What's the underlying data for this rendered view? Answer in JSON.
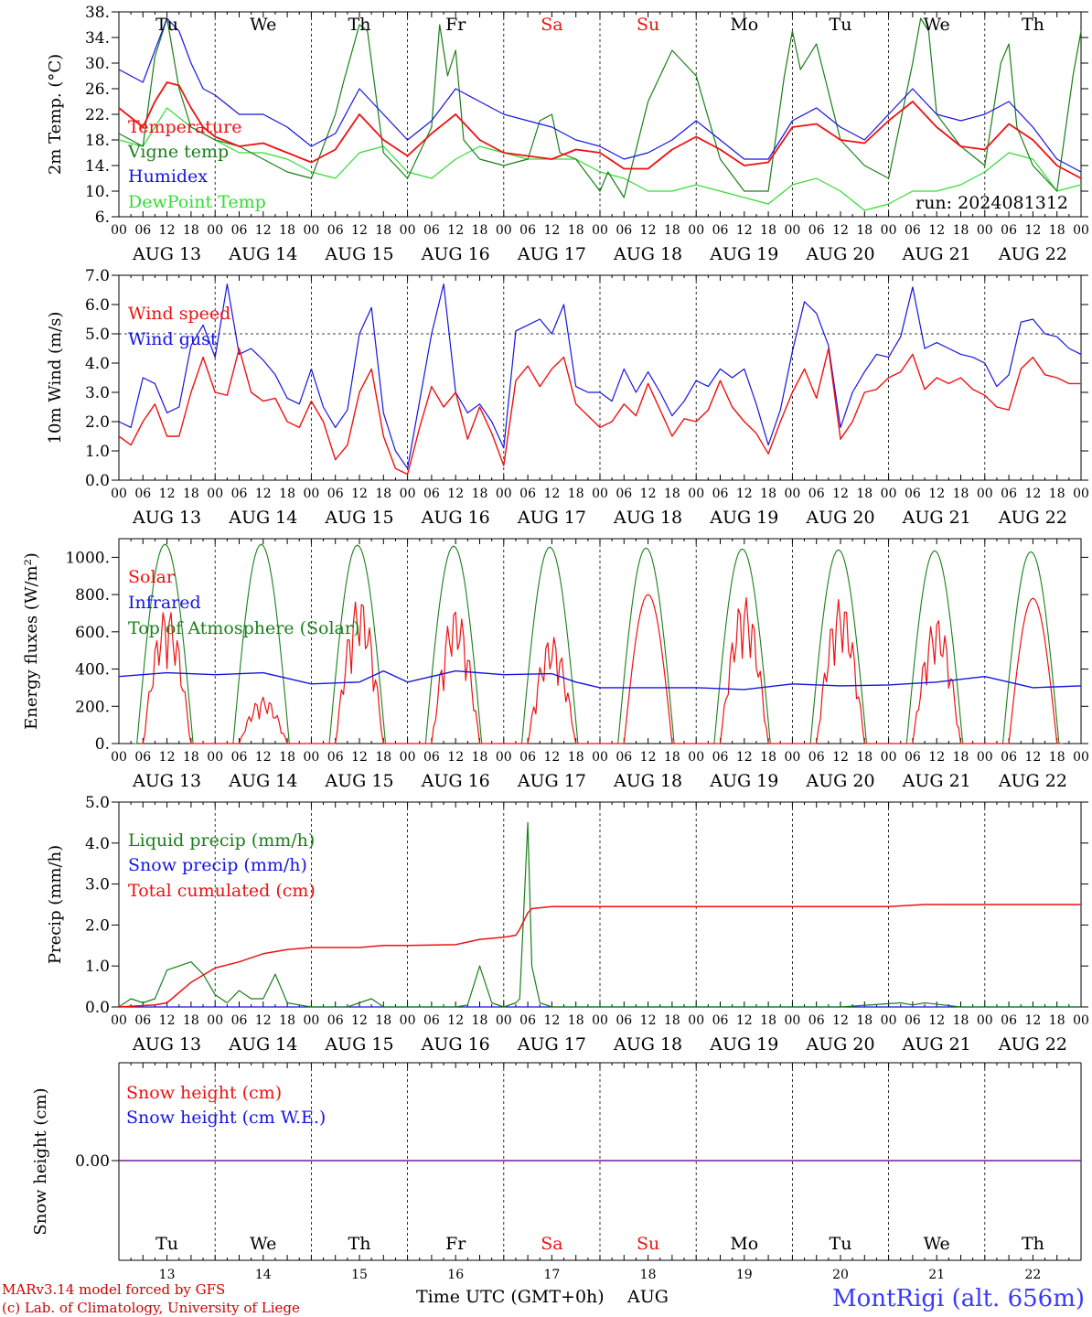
{
  "colors": {
    "red": "#ee1111",
    "green": "#1a7f1a",
    "blue": "#1515e0",
    "lightgreen": "#33dd33",
    "purple": "#7a1a9a",
    "weekend": "#ee1111"
  },
  "weekdays": [
    "Tu",
    "We",
    "Th",
    "Fr",
    "Sa",
    "Su",
    "Mo",
    "Tu",
    "We",
    "Th"
  ],
  "weekend_index": [
    4,
    5
  ],
  "date_labels": [
    "AUG 13",
    "AUG 14",
    "AUG 15",
    "AUG 16",
    "AUG 17",
    "AUG 18",
    "AUG 19",
    "AUG 20",
    "AUG 21",
    "AUG 22"
  ],
  "hour_labels": [
    "00",
    "06",
    "12",
    "18"
  ],
  "hour_last": "00",
  "day_numbers": [
    "13",
    "14",
    "15",
    "16",
    "17",
    "18",
    "19",
    "20",
    "21",
    "22"
  ],
  "footer": {
    "model": "MARv3.14 model forced by GFS",
    "credit": "(c) Lab. of Climatology, University of Liege",
    "xlabel": "Time UTC (GMT+0h)",
    "month": "AUG",
    "station": "MontRigi (alt. 656m)"
  },
  "panels": {
    "temp": {
      "ylabel": "2m Temp. (°C)",
      "yticks": [
        "38.",
        "34.",
        "30.",
        "26.",
        "22.",
        "18.",
        "14.",
        "10.",
        "6."
      ],
      "run": "run: 2024081312",
      "legend": [
        "Temperature",
        "Vigne temp",
        "Humidex",
        "DewPoint Temp"
      ]
    },
    "wind": {
      "ylabel": "10m Wind (m/s)",
      "yticks": [
        "7.0",
        "6.0",
        "5.0",
        "4.0",
        "3.0",
        "2.0",
        "1.0",
        "0.0"
      ],
      "legend": [
        "Wind speed",
        "Wind gust"
      ]
    },
    "flux": {
      "ylabel": "Energy fluxes (W/m²)",
      "yticks": [
        "1000.",
        "800.",
        "600.",
        "400.",
        "200.",
        "0."
      ],
      "legend": [
        "Solar",
        "Infrared",
        "Top of Atmosphere (Solar)"
      ]
    },
    "precip": {
      "ylabel": "Precip (mm/h)",
      "yticks": [
        "5.0",
        "4.0",
        "3.0",
        "2.0",
        "1.0",
        "0.0"
      ],
      "legend": [
        "Liquid precip (mm/h)",
        "Snow precip (mm/h)",
        "Total cumulated (cm)"
      ]
    },
    "snow": {
      "ylabel": "Snow height (cm)",
      "yticks": [
        "0.00"
      ],
      "legend": [
        "Snow height (cm)",
        "Snow height (cm W.E.)"
      ]
    }
  },
  "chart_data": [
    {
      "type": "line",
      "title": "",
      "ylabel": "2m Temp. (°C)",
      "x_unit": "hours since 00 UTC AUG 13",
      "xlim": [
        0,
        240
      ],
      "ylim": [
        6,
        38
      ],
      "series": [
        {
          "name": "Temperature",
          "x": [
            0,
            6,
            9,
            12,
            15,
            18,
            21,
            24,
            30,
            36,
            42,
            48,
            54,
            60,
            66,
            72,
            78,
            84,
            90,
            96,
            102,
            108,
            114,
            120,
            126,
            132,
            138,
            144,
            150,
            156,
            162,
            168,
            174,
            180,
            186,
            192,
            198,
            204,
            210,
            216,
            222,
            228,
            234,
            240
          ],
          "y": [
            23,
            20,
            24,
            27,
            26.5,
            23,
            20,
            18.5,
            17,
            17.5,
            16,
            14.5,
            16.5,
            22,
            18,
            15.5,
            19,
            22,
            18,
            16,
            15.5,
            15,
            16.5,
            16,
            13.5,
            13.5,
            16.5,
            18.5,
            16.5,
            14,
            14.5,
            20,
            20.5,
            18,
            17.5,
            21,
            24,
            20,
            17,
            16.5,
            20.5,
            18,
            14,
            12
          ]
        },
        {
          "name": "Vigne temp",
          "x": [
            0,
            6,
            9,
            12,
            15,
            18,
            21,
            24,
            30,
            36,
            42,
            48,
            54,
            56,
            60,
            62,
            66,
            72,
            78,
            80,
            82,
            84,
            86,
            90,
            96,
            102,
            105,
            108,
            110,
            114,
            120,
            122,
            126,
            132,
            138,
            144,
            150,
            156,
            162,
            166,
            168,
            170,
            174,
            180,
            186,
            192,
            198,
            200,
            202,
            204,
            210,
            216,
            220,
            222,
            224,
            228,
            234,
            238,
            240
          ],
          "y": [
            19,
            17,
            31,
            37,
            26,
            20,
            19,
            18,
            17,
            15,
            13,
            12,
            22,
            27,
            36,
            35,
            16,
            12,
            20,
            36,
            28,
            32,
            18,
            15,
            14,
            15,
            21,
            22,
            16,
            15,
            10,
            13,
            9,
            24,
            32,
            28,
            15,
            10,
            10,
            28,
            35,
            29,
            33,
            18,
            14,
            12,
            30,
            37,
            35,
            22,
            17,
            14,
            30,
            33,
            20,
            14,
            10,
            28,
            35
          ]
        },
        {
          "name": "Humidex",
          "x": [
            0,
            6,
            9,
            12,
            15,
            18,
            21,
            24,
            30,
            36,
            42,
            48,
            54,
            60,
            66,
            72,
            78,
            84,
            90,
            96,
            102,
            108,
            114,
            120,
            126,
            132,
            138,
            144,
            150,
            156,
            162,
            168,
            174,
            180,
            186,
            192,
            198,
            204,
            210,
            216,
            222,
            228,
            234,
            240
          ],
          "y": [
            29,
            27,
            32,
            37,
            35,
            30,
            26,
            25,
            22,
            22,
            20,
            17,
            19,
            26,
            22,
            18,
            21,
            26,
            24,
            22,
            21,
            20,
            18,
            17,
            15,
            16,
            18,
            21,
            18,
            15,
            15,
            21,
            23,
            20,
            18,
            22,
            26,
            22,
            21,
            22,
            24,
            20,
            15,
            13
          ]
        },
        {
          "name": "DewPoint Temp",
          "x": [
            0,
            6,
            12,
            18,
            24,
            30,
            36,
            42,
            48,
            54,
            60,
            66,
            72,
            78,
            84,
            90,
            96,
            102,
            108,
            114,
            120,
            126,
            132,
            138,
            144,
            150,
            156,
            162,
            168,
            174,
            180,
            186,
            192,
            198,
            204,
            210,
            216,
            222,
            228,
            234,
            240
          ],
          "y": [
            18,
            17,
            23,
            20,
            18,
            16,
            16,
            15,
            13,
            12,
            16,
            17,
            13,
            12,
            15,
            17,
            16,
            15,
            15,
            15,
            13,
            12,
            10,
            10,
            11,
            10,
            9,
            8,
            11,
            12,
            10,
            7,
            8,
            10,
            10,
            11,
            13,
            16,
            15,
            10,
            11
          ]
        }
      ]
    },
    {
      "type": "line",
      "title": "",
      "ylabel": "10m Wind (m/s)",
      "xlim": [
        0,
        240
      ],
      "ylim": [
        0,
        7
      ],
      "series": [
        {
          "name": "Wind speed",
          "x": [
            0,
            3,
            6,
            9,
            12,
            15,
            18,
            21,
            24,
            27,
            30,
            33,
            36,
            39,
            42,
            45,
            48,
            51,
            54,
            57,
            60,
            63,
            66,
            69,
            72,
            75,
            78,
            81,
            84,
            87,
            90,
            93,
            96,
            99,
            102,
            105,
            108,
            111,
            114,
            117,
            120,
            123,
            126,
            129,
            132,
            135,
            138,
            141,
            144,
            147,
            150,
            153,
            156,
            159,
            162,
            165,
            168,
            171,
            174,
            177,
            180,
            183,
            186,
            189,
            192,
            195,
            198,
            201,
            204,
            207,
            210,
            213,
            216,
            219,
            222,
            225,
            228,
            231,
            234,
            237,
            240
          ],
          "y": [
            1.5,
            1.2,
            2.0,
            2.6,
            1.5,
            1.5,
            3.0,
            4.2,
            3.0,
            2.9,
            4.5,
            3.0,
            2.7,
            2.8,
            2.0,
            1.8,
            2.7,
            2.0,
            0.7,
            1.2,
            3.0,
            3.8,
            1.5,
            0.4,
            0.2,
            1.8,
            3.2,
            2.5,
            3.0,
            1.4,
            2.5,
            1.6,
            0.5,
            3.4,
            3.9,
            3.2,
            3.8,
            4.2,
            2.6,
            2.2,
            1.8,
            2.0,
            2.6,
            2.2,
            3.3,
            2.4,
            1.5,
            2.1,
            2.0,
            2.4,
            3.4,
            2.5,
            2.0,
            1.6,
            0.9,
            2.0,
            3.0,
            3.8,
            2.8,
            4.5,
            1.4,
            2.0,
            3.0,
            3.1,
            3.5,
            3.7,
            4.3,
            3.1,
            3.5,
            3.3,
            3.5,
            3.1,
            2.9,
            2.5,
            2.4,
            3.8,
            4.2,
            3.6,
            3.5,
            3.3,
            3.3
          ]
        },
        {
          "name": "Wind gust",
          "x": [
            0,
            3,
            6,
            9,
            12,
            15,
            18,
            21,
            24,
            27,
            30,
            33,
            36,
            39,
            42,
            45,
            48,
            51,
            54,
            57,
            60,
            63,
            66,
            69,
            72,
            75,
            78,
            81,
            84,
            87,
            90,
            93,
            96,
            99,
            102,
            105,
            108,
            111,
            114,
            117,
            120,
            123,
            126,
            129,
            132,
            135,
            138,
            141,
            144,
            147,
            150,
            153,
            156,
            159,
            162,
            165,
            168,
            171,
            174,
            177,
            180,
            183,
            186,
            189,
            192,
            195,
            198,
            201,
            204,
            207,
            210,
            213,
            216,
            219,
            222,
            225,
            228,
            231,
            234,
            237,
            240
          ],
          "y": [
            2.0,
            1.8,
            3.5,
            3.3,
            2.3,
            2.5,
            4.6,
            5.3,
            4.2,
            6.7,
            4.3,
            4.5,
            4.1,
            3.6,
            2.8,
            2.6,
            3.8,
            2.5,
            1.8,
            2.4,
            5.0,
            5.9,
            2.3,
            1.0,
            0.4,
            2.7,
            5.0,
            6.7,
            3.0,
            2.3,
            2.6,
            2.0,
            1.1,
            5.1,
            5.3,
            5.5,
            5.0,
            6.0,
            3.2,
            3.0,
            3.0,
            2.7,
            3.8,
            3.0,
            3.7,
            3.0,
            2.2,
            2.7,
            3.4,
            3.2,
            3.8,
            3.5,
            3.8,
            2.6,
            1.2,
            2.4,
            4.4,
            6.1,
            5.7,
            4.6,
            1.8,
            3.0,
            3.7,
            4.3,
            4.2,
            4.9,
            6.6,
            4.5,
            4.7,
            4.5,
            4.3,
            4.2,
            4.0,
            3.2,
            3.6,
            5.4,
            5.5,
            5.0,
            4.9,
            4.5,
            4.3
          ]
        }
      ]
    },
    {
      "type": "line",
      "title": "",
      "ylabel": "Energy fluxes (W/m²)",
      "xlim": [
        0,
        240
      ],
      "ylim": [
        0,
        1100
      ],
      "series": [
        {
          "name": "Solar",
          "peaks": [
            730,
            250,
            790,
            730,
            580,
            800,
            790,
            780,
            680,
            780
          ]
        },
        {
          "name": "Infrared",
          "x": [
            0,
            12,
            24,
            36,
            48,
            60,
            66,
            72,
            84,
            96,
            108,
            114,
            120,
            132,
            144,
            156,
            168,
            180,
            192,
            204,
            216,
            228,
            240
          ],
          "y": [
            360,
            380,
            370,
            380,
            320,
            330,
            390,
            330,
            390,
            370,
            375,
            330,
            300,
            300,
            300,
            290,
            320,
            310,
            315,
            330,
            360,
            300,
            310
          ]
        },
        {
          "name": "Top of Atmosphere (Solar)",
          "peaks": [
            1070,
            1070,
            1065,
            1060,
            1055,
            1050,
            1045,
            1040,
            1035,
            1030
          ]
        }
      ]
    },
    {
      "type": "line",
      "title": "",
      "ylabel": "Precip (mm/h)",
      "xlim": [
        0,
        240
      ],
      "ylim": [
        0,
        5
      ],
      "series": [
        {
          "name": "Liquid precip (mm/h)",
          "x": [
            0,
            3,
            6,
            9,
            12,
            15,
            18,
            21,
            24,
            27,
            30,
            33,
            36,
            39,
            42,
            45,
            48,
            57,
            60,
            63,
            66,
            84,
            87,
            90,
            93,
            96,
            99,
            100,
            102,
            103,
            105,
            108,
            120,
            180,
            195,
            198,
            201,
            210,
            240
          ],
          "y": [
            0,
            0.2,
            0.1,
            0.2,
            0.9,
            1.0,
            1.1,
            0.8,
            0.3,
            0.1,
            0.4,
            0.2,
            0.2,
            0.8,
            0.1,
            0.05,
            0,
            0,
            0.1,
            0.2,
            0,
            0,
            0.05,
            1.0,
            0.1,
            0,
            0.1,
            0.2,
            4.5,
            1.0,
            0.1,
            0,
            0,
            0,
            0.1,
            0.05,
            0.1,
            0,
            0
          ]
        },
        {
          "name": "Snow precip (mm/h)",
          "x": [
            0,
            240
          ],
          "y": [
            0,
            0
          ]
        },
        {
          "name": "Total cumulated (cm)",
          "x": [
            0,
            9,
            12,
            18,
            24,
            30,
            36,
            42,
            48,
            60,
            66,
            72,
            84,
            90,
            96,
            99,
            100,
            102,
            103,
            105,
            108,
            120,
            180,
            192,
            201,
            240
          ],
          "y": [
            0,
            0.05,
            0.1,
            0.6,
            0.95,
            1.1,
            1.3,
            1.4,
            1.45,
            1.45,
            1.5,
            1.5,
            1.52,
            1.65,
            1.7,
            1.75,
            1.9,
            2.3,
            2.4,
            2.42,
            2.45,
            2.45,
            2.45,
            2.45,
            2.5,
            2.5
          ]
        }
      ]
    },
    {
      "type": "line",
      "title": "",
      "ylabel": "Snow height (cm)",
      "xlim": [
        0,
        240
      ],
      "series": [
        {
          "name": "Snow height (cm)",
          "x": [
            0,
            240
          ],
          "y": [
            0,
            0
          ]
        },
        {
          "name": "Snow height (cm W.E.)",
          "x": [
            0,
            240
          ],
          "y": [
            0,
            0
          ]
        }
      ]
    }
  ]
}
